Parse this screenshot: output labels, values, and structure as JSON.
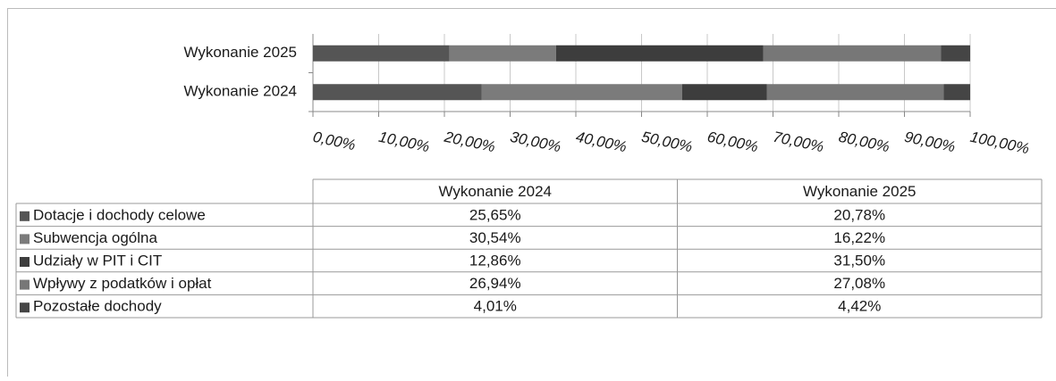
{
  "chart_data": {
    "type": "stacked-bar-horizontal",
    "categories": [
      "Wykonanie 2024",
      "Wykonanie 2025"
    ],
    "series": [
      {
        "name": "Dotacje i dochody celowe",
        "color": "#555555",
        "values": [
          25.65,
          20.78
        ],
        "value_labels": [
          "25,65%",
          "20,78%"
        ]
      },
      {
        "name": "Subwencja ogólna",
        "color": "#7b7b7b",
        "values": [
          30.54,
          16.22
        ],
        "value_labels": [
          "30,54%",
          "16,22%"
        ]
      },
      {
        "name": "Udziały w PIT i CIT",
        "color": "#3d3d3d",
        "values": [
          12.86,
          31.5
        ],
        "value_labels": [
          "12,86%",
          "31,50%"
        ]
      },
      {
        "name": "Wpływy z podatków i opłat",
        "color": "#777777",
        "values": [
          26.94,
          27.08
        ],
        "value_labels": [
          "26,94%",
          "27,08%"
        ]
      },
      {
        "name": "Pozostałe dochody",
        "color": "#454545",
        "values": [
          4.01,
          4.42
        ],
        "value_labels": [
          "4,01%",
          "4,42%"
        ]
      }
    ],
    "xlim": [
      0,
      100
    ],
    "xticks": [
      {
        "value": 0,
        "label": "0,00%"
      },
      {
        "value": 10,
        "label": "10,00%"
      },
      {
        "value": 20,
        "label": "20,00%"
      },
      {
        "value": 30,
        "label": "30,00%"
      },
      {
        "value": 40,
        "label": "40,00%"
      },
      {
        "value": 50,
        "label": "50,00%"
      },
      {
        "value": 60,
        "label": "60,00%"
      },
      {
        "value": 70,
        "label": "70,00%"
      },
      {
        "value": 80,
        "label": "80,00%"
      },
      {
        "value": 90,
        "label": "90,00%"
      },
      {
        "value": 100,
        "label": "100,00%"
      }
    ],
    "grid": true
  }
}
